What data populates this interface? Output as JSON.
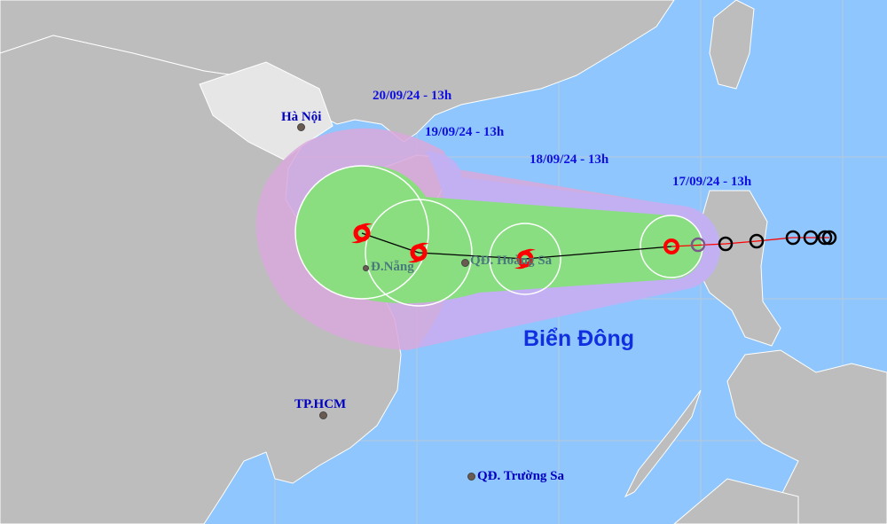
{
  "colors": {
    "sea": "#8fc6fd",
    "land": "#bdbdbd",
    "risk_zone": "#d9a8dc",
    "forecast_cone": "#c1b0f5",
    "strong_wind_zone": "#86e07a",
    "storm_icon": "#ff0000",
    "track": "#000000"
  },
  "forecast_labels": [
    "20/09/24 - 13h",
    "19/09/24 - 13h",
    "18/09/24 - 13h",
    "17/09/24 - 13h"
  ],
  "places": {
    "hanoi": "Hà Nội",
    "danang": "Đ.Nẵng",
    "hoangsa": "QĐ. Hoàng Sa",
    "hcm": "TP.HCM",
    "truongsa": "QĐ. Trường Sa"
  },
  "sea_name": "Biển Đông",
  "icons": {
    "storm": "tropical-storm-icon",
    "past_position": "circle-outline-icon"
  }
}
